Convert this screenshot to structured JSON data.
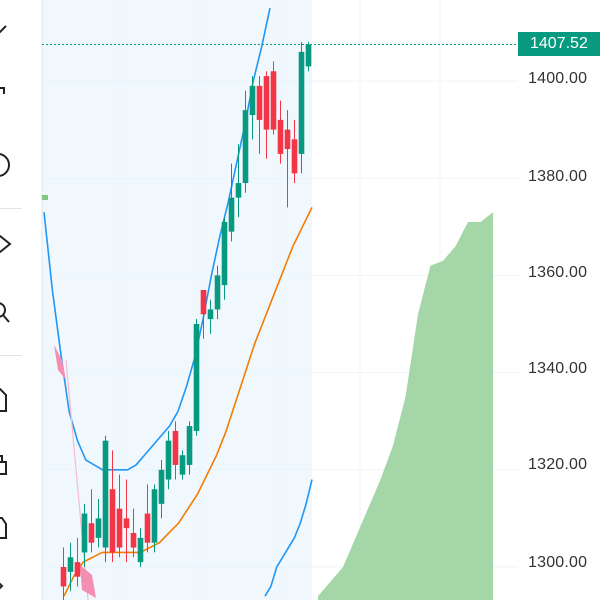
{
  "toolbar": {
    "tools": [
      {
        "name": "trend-line-icon"
      },
      {
        "name": "fib-retracement-icon"
      },
      {
        "name": "brush-icon"
      },
      {
        "name": "price-label-icon"
      },
      {
        "name": "zoom-icon"
      },
      {
        "name": "magnet-icon"
      },
      {
        "name": "lock-icon"
      },
      {
        "name": "hide-drawings-icon"
      },
      {
        "name": "trash-icon"
      }
    ]
  },
  "price_axis": {
    "labels": [
      "1400.00",
      "1380.00",
      "1360.00",
      "1340.00",
      "1320.00",
      "1300.00"
    ],
    "current_price": "1407.52",
    "current_price_color": "#089981"
  },
  "colors": {
    "up": "#089981",
    "down": "#f23645",
    "bollinger": "#2196f3",
    "ma": "#f57c00",
    "cloud": "#a5d6a7",
    "band_fill": "#e3f2fd"
  },
  "chart_data": {
    "type": "candlestick",
    "y_range": [
      1294,
      1414
    ],
    "candles": [
      {
        "o": 1300,
        "h": 1304,
        "l": 1292,
        "c": 1296
      },
      {
        "o": 1299,
        "h": 1305,
        "l": 1295,
        "c": 1302
      },
      {
        "o": 1301,
        "h": 1306,
        "l": 1296,
        "c": 1298
      },
      {
        "o": 1303,
        "h": 1313,
        "l": 1300,
        "c": 1311
      },
      {
        "o": 1309,
        "h": 1316,
        "l": 1303,
        "c": 1305
      },
      {
        "o": 1306,
        "h": 1314,
        "l": 1304,
        "c": 1310
      },
      {
        "o": 1304,
        "h": 1327,
        "l": 1301,
        "c": 1326
      },
      {
        "o": 1316,
        "h": 1324,
        "l": 1301,
        "c": 1303
      },
      {
        "o": 1312,
        "h": 1319,
        "l": 1302,
        "c": 1304
      },
      {
        "o": 1310,
        "h": 1318,
        "l": 1301,
        "c": 1308
      },
      {
        "o": 1307,
        "h": 1312,
        "l": 1302,
        "c": 1304
      },
      {
        "o": 1301,
        "h": 1308,
        "l": 1300,
        "c": 1306
      },
      {
        "o": 1311,
        "h": 1317,
        "l": 1303,
        "c": 1305
      },
      {
        "o": 1305,
        "h": 1317,
        "l": 1303,
        "c": 1316
      },
      {
        "o": 1313,
        "h": 1322,
        "l": 1310,
        "c": 1320
      },
      {
        "o": 1318,
        "h": 1328,
        "l": 1316,
        "c": 1326
      },
      {
        "o": 1328,
        "h": 1330,
        "l": 1318,
        "c": 1321
      },
      {
        "o": 1319,
        "h": 1324,
        "l": 1318,
        "c": 1323
      },
      {
        "o": 1321,
        "h": 1330,
        "l": 1319,
        "c": 1329
      },
      {
        "o": 1328,
        "h": 1351,
        "l": 1327,
        "c": 1350
      },
      {
        "o": 1357,
        "h": 1357,
        "l": 1347,
        "c": 1352
      },
      {
        "o": 1351,
        "h": 1355,
        "l": 1348,
        "c": 1353
      },
      {
        "o": 1353,
        "h": 1362,
        "l": 1351,
        "c": 1360
      },
      {
        "o": 1358,
        "h": 1372,
        "l": 1355,
        "c": 1371
      },
      {
        "o": 1369,
        "h": 1383,
        "l": 1367,
        "c": 1376
      },
      {
        "o": 1376,
        "h": 1387,
        "l": 1372,
        "c": 1379
      },
      {
        "o": 1379,
        "h": 1398,
        "l": 1377,
        "c": 1394
      },
      {
        "o": 1393,
        "h": 1401,
        "l": 1388,
        "c": 1399
      },
      {
        "o": 1399,
        "h": 1401,
        "l": 1385,
        "c": 1392
      },
      {
        "o": 1401,
        "h": 1402,
        "l": 1384,
        "c": 1390
      },
      {
        "o": 1402,
        "h": 1404,
        "l": 1389,
        "c": 1390
      },
      {
        "o": 1392,
        "h": 1396,
        "l": 1383,
        "c": 1385
      },
      {
        "o": 1390,
        "h": 1394,
        "l": 1374,
        "c": 1386
      },
      {
        "o": 1388,
        "h": 1392,
        "l": 1379,
        "c": 1381
      },
      {
        "o": 1385,
        "h": 1408,
        "l": 1381,
        "c": 1406
      },
      {
        "o": 1403,
        "h": 1408,
        "l": 1402,
        "c": 1407.52
      }
    ],
    "bollinger_upper": [
      1373,
      1357,
      1344,
      1332,
      1326,
      1322,
      1321,
      1320,
      1320,
      1320,
      1320,
      1321,
      1323,
      1325,
      1327,
      1329,
      1332,
      1337,
      1343,
      1351,
      1360,
      1368,
      1375,
      1383,
      1391,
      1400,
      1407,
      1415
    ],
    "bollinger_lower": [
      1294,
      1296,
      1300,
      1302,
      1304,
      1306,
      1309,
      1313,
      1318
    ],
    "ma": [
      1294,
      1298,
      1301,
      1302,
      1303,
      1303,
      1303,
      1303,
      1303,
      1304,
      1305,
      1307,
      1309,
      1312,
      1315,
      1319,
      1323,
      1328,
      1334,
      1340,
      1346,
      1351,
      1356,
      1361,
      1366,
      1370,
      1374
    ],
    "cloud_top": [
      1294,
      1297,
      1300,
      1306,
      1312,
      1318,
      1325,
      1335,
      1352,
      1362,
      1363,
      1366,
      1371,
      1371,
      1373
    ]
  }
}
